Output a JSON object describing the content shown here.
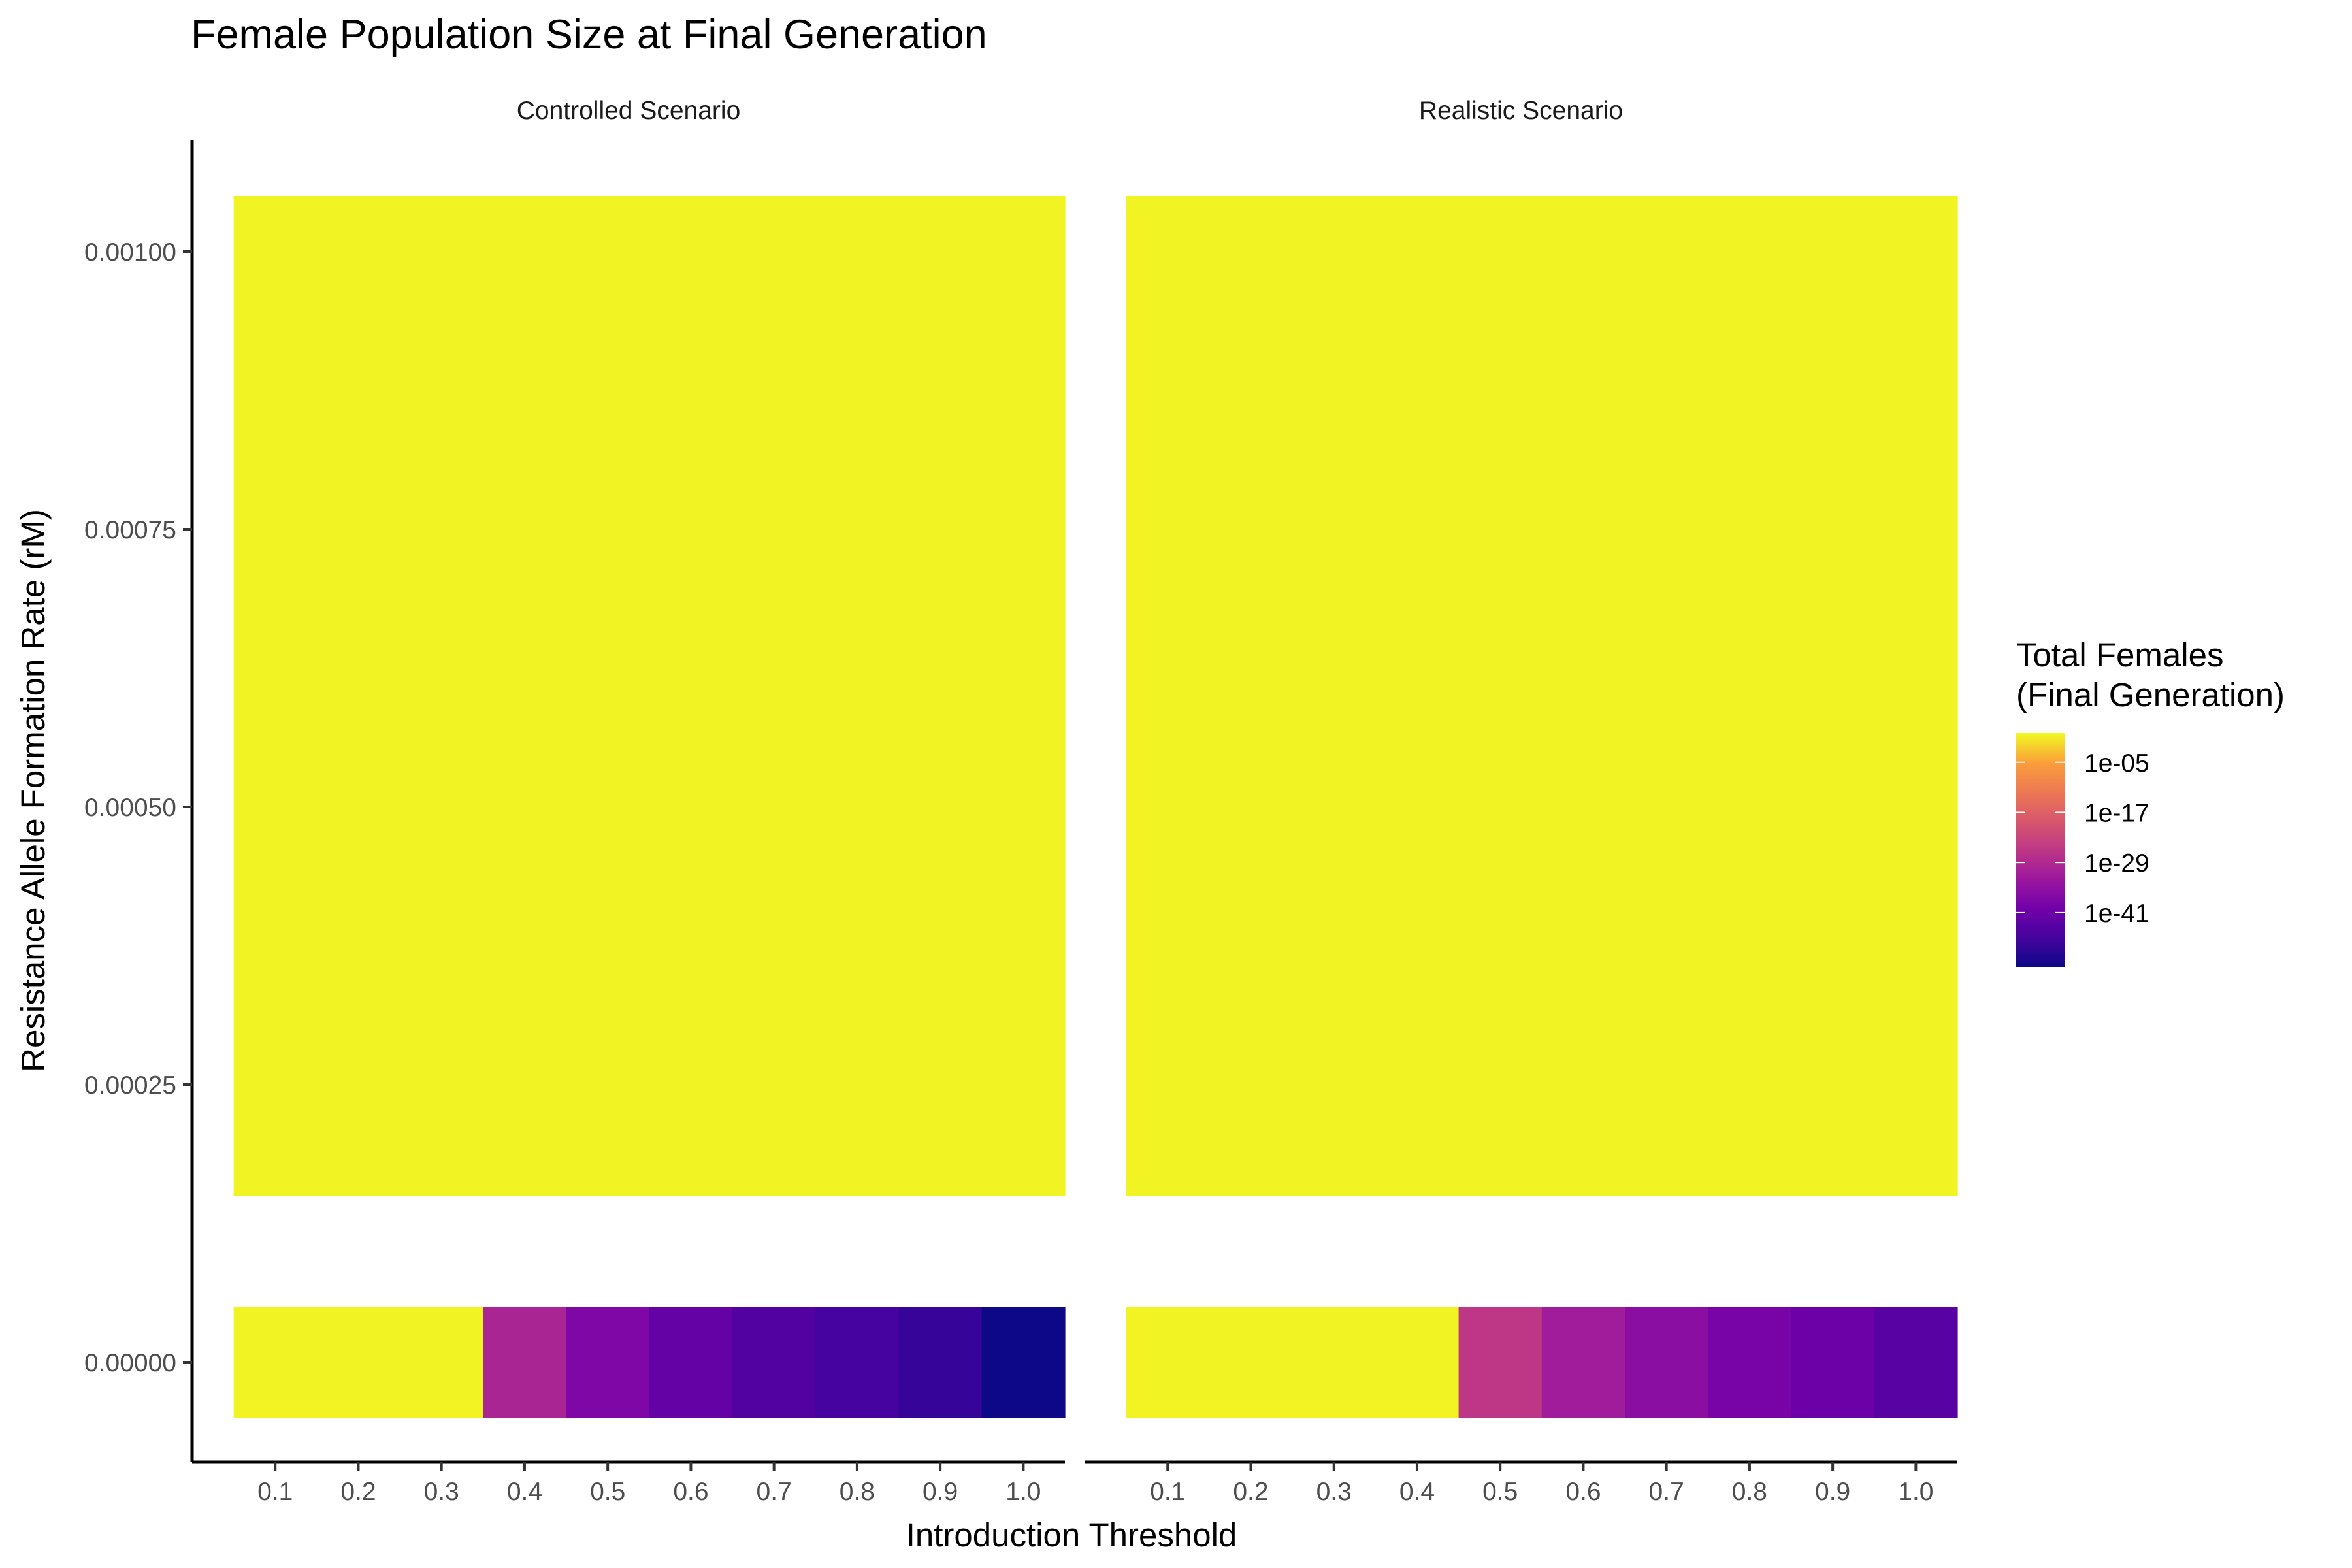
{
  "chart_data": {
    "type": "heatmap",
    "title": "Female Population Size at Final Generation",
    "xlabel": "Introduction Threshold",
    "ylabel": "Resistance Allele Formation Rate (rM)",
    "x": [
      0.1,
      0.2,
      0.3,
      0.4,
      0.5,
      0.6,
      0.7,
      0.8,
      0.9,
      1.0
    ],
    "x_tick_labels": [
      "0.1",
      "0.2",
      "0.3",
      "0.4",
      "0.5",
      "0.6",
      "0.7",
      "0.8",
      "0.9",
      "1.0"
    ],
    "y": [
      0,
      0.001
    ],
    "y_ticks": [
      0,
      0.00025,
      0.0005,
      0.00075,
      0.001
    ],
    "y_tick_labels": [
      "0.00000",
      "0.00025",
      "0.00050",
      "0.00075",
      "0.00100"
    ],
    "ylim": [
      -9e-05,
      0.0011
    ],
    "color_scale": {
      "name": "plasma",
      "log10_range": [
        -54,
        2
      ],
      "legend_title": [
        "Total Females",
        "(Final Generation)"
      ],
      "legend_ticks": [
        -5,
        -17,
        -29,
        -41
      ],
      "legend_tick_labels": [
        "1e-05",
        "1e-17",
        "1e-29",
        "1e-41"
      ]
    },
    "grid": false,
    "legend_position": "right",
    "panels": [
      {
        "name": "Controlled Scenario",
        "log10_values": [
          [
            1.5,
            1.5,
            1.5,
            -30,
            -38,
            -42,
            -45,
            -47,
            -49,
            -54
          ],
          [
            1.5,
            1.5,
            1.5,
            1.5,
            1.5,
            1.5,
            1.5,
            1.5,
            1.5,
            1.5
          ]
        ]
      },
      {
        "name": "Realistic Scenario",
        "log10_values": [
          [
            1.5,
            1.5,
            1.5,
            1.5,
            -26,
            -32,
            -36,
            -39,
            -41,
            -44
          ],
          [
            1.5,
            1.5,
            1.5,
            1.5,
            1.5,
            1.5,
            1.5,
            1.5,
            1.5,
            1.5
          ]
        ]
      }
    ]
  }
}
